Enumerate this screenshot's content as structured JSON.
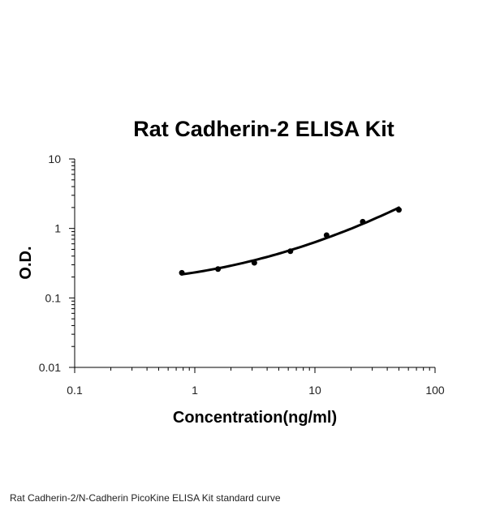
{
  "chart_data": {
    "type": "scatter",
    "title": "Rat Cadherin-2 ELISA Kit",
    "xlabel": "Concentration(ng/ml)",
    "ylabel": "O.D.",
    "x_scale": "log",
    "y_scale": "log",
    "xlim": [
      0.1,
      100
    ],
    "ylim": [
      0.01,
      10
    ],
    "x_ticks": [
      "0.1",
      "1",
      "10",
      "100"
    ],
    "y_ticks": [
      "0.01",
      "0.1",
      "1",
      "10"
    ],
    "grid": false,
    "legend": "none",
    "series": [
      {
        "points": [
          {
            "x": 0.78,
            "y": 0.23
          },
          {
            "x": 1.56,
            "y": 0.26
          },
          {
            "x": 3.13,
            "y": 0.32
          },
          {
            "x": 6.25,
            "y": 0.47
          },
          {
            "x": 12.5,
            "y": 0.8
          },
          {
            "x": 25,
            "y": 1.25
          },
          {
            "x": 50,
            "y": 1.85
          }
        ],
        "fit_curve": true,
        "color": "#000000"
      }
    ]
  },
  "caption": "Rat Cadherin-2/N-Cadherin PicoKine ELISA Kit standard curve"
}
